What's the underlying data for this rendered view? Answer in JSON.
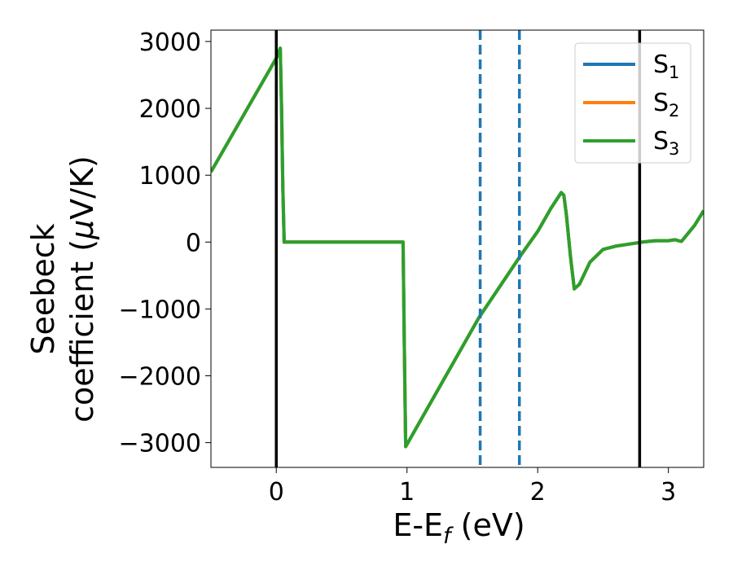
{
  "chart_data": {
    "type": "line",
    "xlabel": "E-E$_f$ (eV)",
    "xlabel_parts": [
      "E-E",
      "f",
      " (eV)"
    ],
    "ylabel_lines": [
      "Seebeck",
      "coefficient  (μV/K)"
    ],
    "ylabel_greek": "μ",
    "xlim": [
      -0.5,
      3.27
    ],
    "ylim": [
      -3370,
      3170
    ],
    "xticks": [
      0,
      1,
      2,
      3
    ],
    "xtick_labels": [
      "0",
      "1",
      "2",
      "3"
    ],
    "yticks": [
      -3000,
      -2000,
      -1000,
      0,
      1000,
      2000,
      3000
    ],
    "ytick_labels": [
      "−3000",
      "−2000",
      "−1000",
      "0",
      "1000",
      "2000",
      "3000"
    ],
    "grid": false,
    "legend_position": "top-right",
    "series": [
      {
        "name": "S_1",
        "label_main": "S",
        "label_sub": "1",
        "color": "#1f77b4",
        "x": [
          -0.5,
          0.0,
          0.03,
          0.04,
          0.05,
          0.06,
          0.97,
          0.98,
          0.99,
          1.55,
          1.87,
          2.0,
          2.1,
          2.18,
          2.2,
          2.22,
          2.25,
          2.28,
          2.32,
          2.4,
          2.5,
          2.6,
          2.8,
          2.9,
          3.0,
          3.05,
          3.1,
          3.2,
          3.27
        ],
        "y": [
          1050,
          2750,
          2900,
          2000,
          800,
          0,
          0,
          -1600,
          -3060,
          -1130,
          -200,
          160,
          500,
          740,
          700,
          400,
          -200,
          -700,
          -630,
          -300,
          -110,
          -60,
          0,
          20,
          20,
          35,
          10,
          250,
          470
        ]
      },
      {
        "name": "S_2",
        "label_main": "S",
        "label_sub": "2",
        "color": "#ff7f0e",
        "x": [
          -0.5,
          0.0,
          0.03,
          0.04,
          0.05,
          0.06,
          0.97,
          0.98,
          0.99,
          1.55,
          1.87,
          2.0,
          2.1,
          2.18,
          2.2,
          2.22,
          2.25,
          2.28,
          2.32,
          2.4,
          2.5,
          2.6,
          2.8,
          2.9,
          3.0,
          3.05,
          3.1,
          3.2,
          3.27
        ],
        "y": [
          1050,
          2750,
          2900,
          2000,
          800,
          0,
          0,
          -1600,
          -3060,
          -1130,
          -200,
          160,
          500,
          740,
          700,
          400,
          -200,
          -700,
          -630,
          -300,
          -110,
          -60,
          0,
          20,
          20,
          35,
          10,
          250,
          470
        ]
      },
      {
        "name": "S_3",
        "label_main": "S",
        "label_sub": "3",
        "color": "#2ca02c",
        "x": [
          -0.5,
          0.0,
          0.03,
          0.04,
          0.05,
          0.06,
          0.97,
          0.98,
          0.99,
          1.55,
          1.87,
          2.0,
          2.1,
          2.18,
          2.2,
          2.22,
          2.25,
          2.28,
          2.32,
          2.4,
          2.5,
          2.6,
          2.8,
          2.9,
          3.0,
          3.05,
          3.1,
          3.2,
          3.27
        ],
        "y": [
          1050,
          2750,
          2900,
          2000,
          800,
          0,
          0,
          -1600,
          -3060,
          -1130,
          -200,
          160,
          500,
          740,
          700,
          400,
          -200,
          -700,
          -630,
          -300,
          -110,
          -60,
          0,
          20,
          20,
          35,
          10,
          250,
          470
        ]
      }
    ],
    "vertical_lines": [
      {
        "x": 0.0,
        "style": "solid",
        "color": "#000000"
      },
      {
        "x": 2.78,
        "style": "solid",
        "color": "#000000"
      },
      {
        "x": 1.56,
        "style": "dashed",
        "color": "#1f77b4"
      },
      {
        "x": 1.86,
        "style": "dashed",
        "color": "#1f77b4"
      }
    ]
  }
}
